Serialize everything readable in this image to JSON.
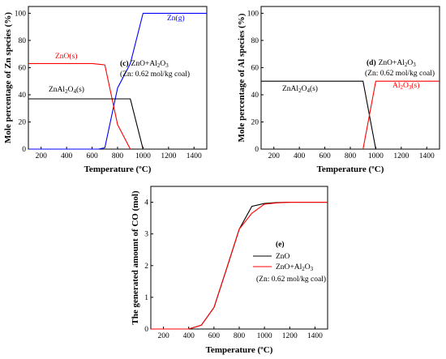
{
  "chart_data": [
    {
      "type": "line",
      "xlabel": "Temperature (ºC)",
      "ylabel": "Mole percentage of Zn species (%)",
      "xlim": [
        100,
        1500
      ],
      "ylim": [
        0,
        105
      ],
      "xticks": [
        200,
        400,
        600,
        800,
        1000,
        1200,
        1400
      ],
      "yticks": [
        0,
        20,
        40,
        60,
        80,
        100
      ],
      "series": [
        {
          "name": "Zn(g)",
          "color": "#0000ff",
          "x": [
            100,
            650,
            700,
            800,
            900,
            1000,
            1500
          ],
          "y": [
            0,
            0,
            1,
            45,
            63,
            100,
            100
          ]
        },
        {
          "name": "ZnO(s)",
          "color": "#ff0000",
          "x": [
            100,
            500,
            600,
            700,
            800,
            900
          ],
          "y": [
            63,
            63,
            63,
            62,
            18,
            0
          ]
        },
        {
          "name": "ZnAl2O4(s)",
          "color": "#000000",
          "x": [
            100,
            500,
            600,
            700,
            900,
            1000
          ],
          "y": [
            37,
            37,
            37,
            37,
            37,
            0
          ]
        }
      ],
      "labels": {
        "zn_g": "Zn(g)",
        "zno_s": "ZnO(s)",
        "znal2o4_s": "ZnAl2O4(s)",
        "panel": "(c)",
        "reaction": "ZnO+Al2O3",
        "condition": "(Zn: 0.62 mol/kg coal)"
      }
    },
    {
      "type": "line",
      "xlabel": "Temperature (ºC)",
      "ylabel": "Mole percentage of Al species (%)",
      "xlim": [
        100,
        1500
      ],
      "ylim": [
        0,
        105
      ],
      "xticks": [
        200,
        400,
        600,
        800,
        1000,
        1200,
        1400
      ],
      "yticks": [
        0,
        20,
        40,
        60,
        80,
        100
      ],
      "series": [
        {
          "name": "ZnAl2O4(s)",
          "color": "#000000",
          "x": [
            100,
            800,
            900,
            1000
          ],
          "y": [
            50,
            50,
            50,
            0
          ]
        },
        {
          "name": "Al2O3(s)",
          "color": "#ff0000",
          "x": [
            900,
            1000,
            1500
          ],
          "y": [
            0,
            50,
            50
          ]
        }
      ],
      "labels": {
        "znal2o4_s": "ZnAl2O4(s)",
        "al2o3_s": "Al2O3(s)",
        "panel": "(d)",
        "reaction": "ZnO+Al2O3",
        "condition": "(Zn: 0.62 mol/kg coal)"
      }
    },
    {
      "type": "line",
      "xlabel": "Temperature (ºC)",
      "ylabel": "The generated amount of CO (mol)",
      "xlim": [
        100,
        1500
      ],
      "ylim": [
        0,
        4.5
      ],
      "xticks": [
        200,
        400,
        600,
        800,
        1000,
        1200,
        1400
      ],
      "yticks": [
        0,
        1,
        2,
        3,
        4
      ],
      "series": [
        {
          "name": "ZnO",
          "color": "#000000",
          "x": [
            100,
            400,
            500,
            600,
            700,
            800,
            900,
            1000,
            1100,
            1200,
            1300,
            1400,
            1500
          ],
          "y": [
            0,
            0,
            0.12,
            0.68,
            1.9,
            3.15,
            3.87,
            3.96,
            3.99,
            4.0,
            4.0,
            4.0,
            4.0
          ]
        },
        {
          "name": "ZnO+Al2O3",
          "color": "#ff0000",
          "x": [
            100,
            400,
            500,
            600,
            700,
            800,
            900,
            1000,
            1100,
            1200,
            1300,
            1400,
            1500
          ],
          "y": [
            0,
            0,
            0.12,
            0.68,
            1.9,
            3.15,
            3.65,
            3.94,
            3.98,
            4.0,
            4.0,
            4.0,
            4.0
          ]
        }
      ],
      "labels": {
        "panel": "(e)",
        "legend_zno": "ZnO",
        "legend_zno_al2o3": "ZnO+Al2O3",
        "condition": "(Zn: 0.62 mol/kg coal)"
      }
    }
  ]
}
